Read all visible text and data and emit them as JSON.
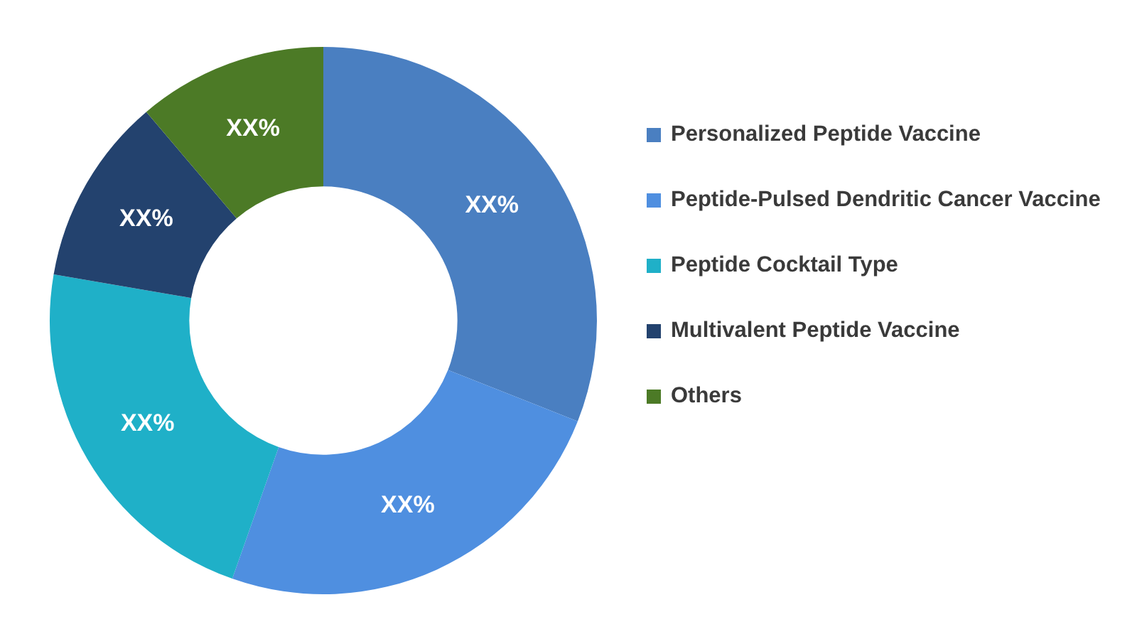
{
  "chart_data": {
    "type": "donut",
    "categories": [
      "Personalized Peptide Vaccine",
      "Peptide-Pulsed Dendritic Cancer Vaccine",
      "Peptide Cocktail Type",
      "Multivalent Peptide Vaccine",
      "Others"
    ],
    "values": [
      31,
      24.4,
      22.3,
      11.1,
      11.2
    ],
    "colors": [
      "#4a7fc1",
      "#4f8fe0",
      "#1fb0c8",
      "#23426e",
      "#4c7a26"
    ],
    "value_labels": [
      "XX%",
      "XX%",
      "XX%",
      "XX%",
      "XX%"
    ],
    "legend": "right"
  }
}
